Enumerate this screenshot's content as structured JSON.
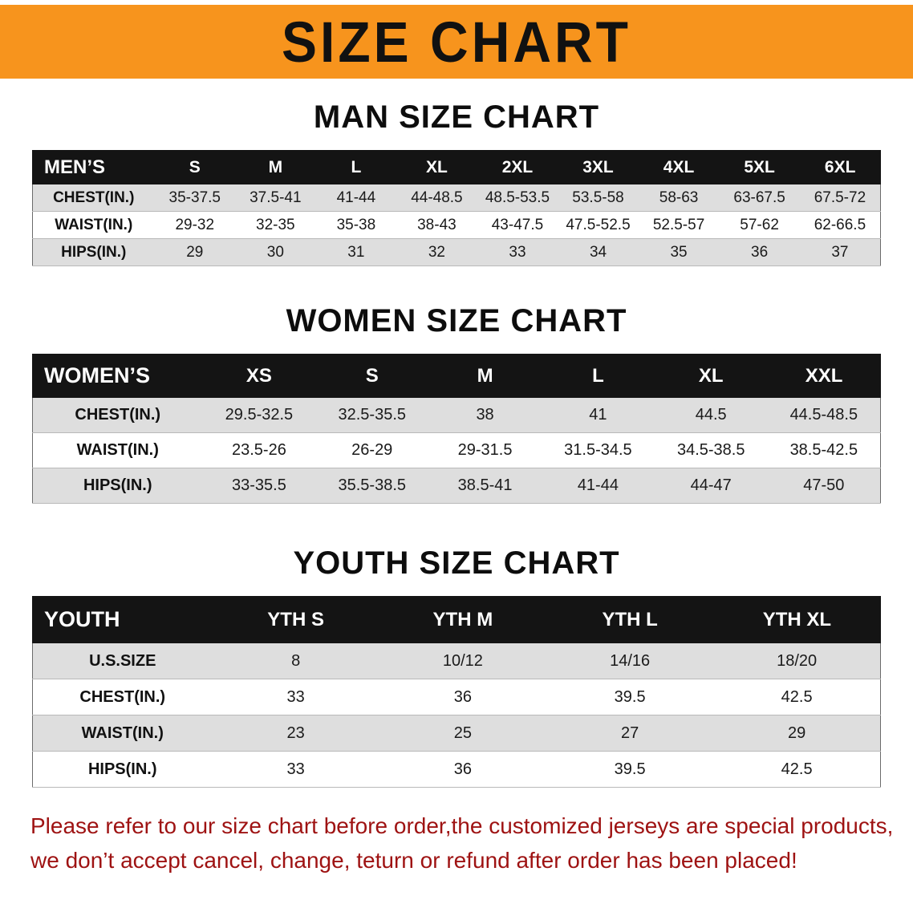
{
  "banner": {
    "title": "SIZE CHART"
  },
  "sections": [
    {
      "title": "MAN SIZE CHART",
      "table": {
        "header": [
          "MEN’S",
          "S",
          "M",
          "L",
          "XL",
          "2XL",
          "3XL",
          "4XL",
          "5XL",
          "6XL"
        ],
        "rows": [
          [
            "CHEST(IN.)",
            "35-37.5",
            "37.5-41",
            "41-44",
            "44-48.5",
            "48.5-53.5",
            "53.5-58",
            "58-63",
            "63-67.5",
            "67.5-72"
          ],
          [
            "WAIST(IN.)",
            "29-32",
            "32-35",
            "35-38",
            "38-43",
            "43-47.5",
            "47.5-52.5",
            "52.5-57",
            "57-62",
            "62-66.5"
          ],
          [
            "HIPS(IN.)",
            "29",
            "30",
            "31",
            "32",
            "33",
            "34",
            "35",
            "36",
            "37"
          ]
        ]
      }
    },
    {
      "title": "WOMEN SIZE CHART",
      "table": {
        "header": [
          "WOMEN’S",
          "XS",
          "S",
          "M",
          "L",
          "XL",
          "XXL"
        ],
        "rows": [
          [
            "CHEST(IN.)",
            "29.5-32.5",
            "32.5-35.5",
            "38",
            "41",
            "44.5",
            "44.5-48.5"
          ],
          [
            "WAIST(IN.)",
            "23.5-26",
            "26-29",
            "29-31.5",
            "31.5-34.5",
            "34.5-38.5",
            "38.5-42.5"
          ],
          [
            "HIPS(IN.)",
            "33-35.5",
            "35.5-38.5",
            "38.5-41",
            "41-44",
            "44-47",
            "47-50"
          ]
        ]
      }
    },
    {
      "title": "YOUTH SIZE CHART",
      "table": {
        "header": [
          "YOUTH",
          "YTH S",
          "YTH M",
          "YTH L",
          "YTH XL"
        ],
        "rows": [
          [
            "U.S.SIZE",
            "8",
            "10/12",
            "14/16",
            "18/20"
          ],
          [
            "CHEST(IN.)",
            "33",
            "36",
            "39.5",
            "42.5"
          ],
          [
            "WAIST(IN.)",
            "23",
            "25",
            "27",
            "29"
          ],
          [
            "HIPS(IN.)",
            "33",
            "36",
            "39.5",
            "42.5"
          ]
        ]
      }
    }
  ],
  "footer": {
    "lines": [
      "Please refer to our size chart before order,the customized jerseys are special products,",
      "we don’t accept cancel, change, teturn or refund after order has been placed!"
    ]
  },
  "colors": {
    "banner_bg": "#F7941D",
    "banner_text": "#111111",
    "header_row_bg": "#141414",
    "row_alt_bg": "#DEDEDE",
    "footer_text": "#9E1212"
  }
}
